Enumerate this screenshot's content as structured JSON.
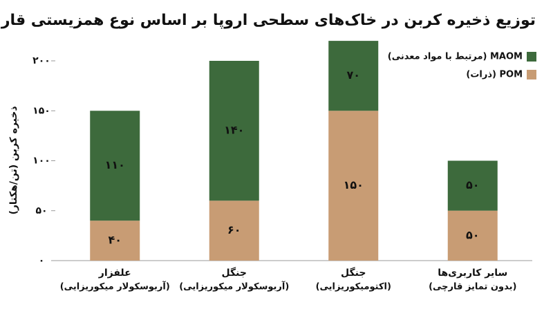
{
  "chart_data": {
    "type": "stacked_bar",
    "title": "توزیع ذخیره کربن در خاک‌های سطحی اروپا بر اساس نوع همزیستی قارچی",
    "y_label": "ذخیره کربن (تن/هکتار)",
    "categories": [
      "علفزار",
      "جنگل",
      "جنگل",
      "سایر کاربری‌ها"
    ],
    "category_subtitles": [
      "(آربوسکولار میکوریزایی)",
      "(آربوسکولار میکوریزایی)",
      "(اکتومیکوریزایی)",
      "(بدون تمایز قارچی)"
    ],
    "series": [
      {
        "name": "POM (ذرات)",
        "color": "#c89c74",
        "values": [
          40,
          60,
          150,
          50
        ],
        "value_labels": [
          "۴۰",
          "۶۰",
          "۱۵۰",
          "۵۰"
        ]
      },
      {
        "name": "MAOM (مرتبط با مواد معدنی)",
        "color": "#3d6a3c",
        "values": [
          110,
          140,
          70,
          50
        ],
        "value_labels": [
          "۱۱۰",
          "۱۴۰",
          "۷۰",
          "۵۰"
        ]
      }
    ],
    "ylim": [
      0,
      200
    ],
    "yticks": [
      {
        "value": 0,
        "label": "۰"
      },
      {
        "value": 50,
        "label": "۵۰"
      },
      {
        "value": 100,
        "label": "۱۰۰"
      },
      {
        "value": 150,
        "label": "۱۵۰"
      },
      {
        "value": 200,
        "label": "۲۰۰"
      }
    ],
    "legend": "top-right"
  }
}
